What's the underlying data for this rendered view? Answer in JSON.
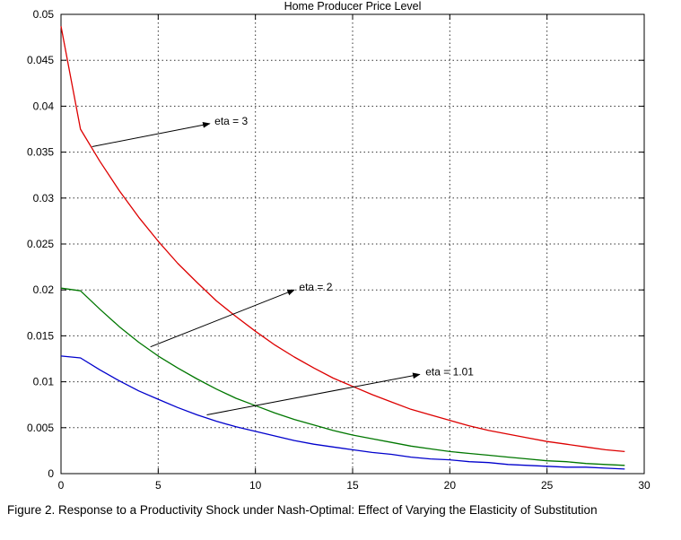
{
  "caption": "Figure 2. Response to a Productivity Shock under Nash-Optimal: Effect of Varying the Elasticity of Substitution",
  "chart_data": {
    "type": "line",
    "title": "Home Producer Price Level",
    "xlabel": "",
    "ylabel": "",
    "grid": true,
    "legend_position": "none",
    "xlim": [
      0,
      30
    ],
    "ylim": [
      0,
      0.05
    ],
    "x_ticks": [
      0,
      5,
      10,
      15,
      20,
      25,
      30
    ],
    "y_ticks": [
      0,
      0.005,
      0.01,
      0.015,
      0.02,
      0.025,
      0.03,
      0.035,
      0.04,
      0.045,
      0.05
    ],
    "y_tick_labels": [
      "0",
      "0.005",
      "0.01",
      "0.015",
      "0.02",
      "0.025",
      "0.03",
      "0.035",
      "0.04",
      "0.045",
      "0.05"
    ],
    "x": [
      0,
      1,
      2,
      3,
      4,
      5,
      6,
      7,
      8,
      9,
      10,
      11,
      12,
      13,
      14,
      15,
      16,
      17,
      18,
      19,
      20,
      21,
      22,
      23,
      24,
      25,
      26,
      27,
      28,
      29
    ],
    "series": [
      {
        "name": "eta = 3",
        "color": "#dd0000",
        "values": [
          0.0487,
          0.0375,
          0.034,
          0.0308,
          0.0279,
          0.0253,
          0.0229,
          0.0208,
          0.0188,
          0.0171,
          0.0155,
          0.014,
          0.0127,
          0.0115,
          0.0104,
          0.0095,
          0.0086,
          0.0078,
          0.007,
          0.0064,
          0.0058,
          0.0052,
          0.0047,
          0.0043,
          0.0039,
          0.0035,
          0.0032,
          0.0029,
          0.0026,
          0.0024
        ]
      },
      {
        "name": "eta = 2",
        "color": "#007700",
        "values": [
          0.0202,
          0.0199,
          0.0179,
          0.016,
          0.0143,
          0.0128,
          0.0115,
          0.0103,
          0.0092,
          0.0082,
          0.0074,
          0.0066,
          0.0059,
          0.0053,
          0.0047,
          0.0042,
          0.0038,
          0.0034,
          0.003,
          0.0027,
          0.0024,
          0.0022,
          0.002,
          0.0018,
          0.0016,
          0.0014,
          0.0013,
          0.0011,
          0.001,
          0.0009
        ]
      },
      {
        "name": "eta = 1.01",
        "color": "#0000cc",
        "values": [
          0.0128,
          0.0126,
          0.0113,
          0.0101,
          0.009,
          0.0081,
          0.0072,
          0.0064,
          0.0057,
          0.0051,
          0.0046,
          0.0041,
          0.0036,
          0.0032,
          0.0029,
          0.0026,
          0.0023,
          0.0021,
          0.0018,
          0.0016,
          0.0015,
          0.0013,
          0.0012,
          0.001,
          0.0009,
          0.0008,
          0.0007,
          0.0007,
          0.0006,
          0.0005
        ]
      }
    ],
    "annotations": [
      {
        "label": "eta = 3",
        "text_x": 7.9,
        "text_y": 0.0384,
        "tail_x": 1.6,
        "tail_y": 0.0356,
        "head_x": 7.65,
        "head_y": 0.0381
      },
      {
        "label": "eta = 2",
        "text_x": 12.25,
        "text_y": 0.0203,
        "tail_x": 4.6,
        "tail_y": 0.0138,
        "head_x": 12.0,
        "head_y": 0.02
      },
      {
        "label": "eta = 1.01",
        "text_x": 18.75,
        "text_y": 0.0111,
        "tail_x": 7.5,
        "tail_y": 0.0064,
        "head_x": 18.45,
        "head_y": 0.0108
      }
    ]
  }
}
